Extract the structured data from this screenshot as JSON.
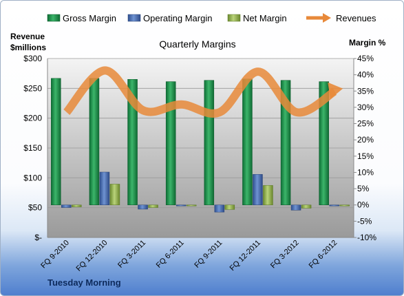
{
  "chart_data": {
    "type": "bar",
    "title": "Quarterly Margins",
    "company": "Tuesday Morning",
    "left_axis_label": [
      "Revenue",
      "$millions"
    ],
    "right_axis_label": "Margin %",
    "categories": [
      "FQ 9-2010",
      "FQ 12-2010",
      "FQ 3-2011",
      "FQ 6-2011",
      "FQ 9-2011",
      "FQ 12-2011",
      "FQ 3-2012",
      "FQ 6-2012"
    ],
    "left_ticks": [
      "$-",
      "$50",
      "$100",
      "$150",
      "$200",
      "$250",
      "$300"
    ],
    "right_ticks": [
      "-10%",
      "-5%",
      "0%",
      "5%",
      "10%",
      "15%",
      "20%",
      "25%",
      "30%",
      "35%",
      "40%",
      "45%"
    ],
    "ylim_left": [
      0,
      300
    ],
    "ylim_right": [
      -10,
      45
    ],
    "legend_position": "top",
    "grid": true,
    "series": [
      {
        "name": "Gross Margin",
        "type": "bar",
        "axis": "right",
        "color": "#1f8a4c",
        "values": [
          38.9,
          38.9,
          38.6,
          37.9,
          38.3,
          38.7,
          38.3,
          37.9
        ]
      },
      {
        "name": "Operating Margin",
        "type": "bar",
        "axis": "right",
        "color": "#4a6fb5",
        "values": [
          -0.8,
          10.1,
          -1.3,
          -0.3,
          -2.2,
          9.4,
          -1.6,
          -0.2
        ]
      },
      {
        "name": "Net Margin",
        "type": "bar",
        "axis": "right",
        "color": "#9bbb59",
        "values": [
          -0.6,
          6.4,
          -0.8,
          -0.2,
          -1.4,
          6.0,
          -1.0,
          -0.2
        ]
      },
      {
        "name": "Revenues",
        "type": "line",
        "axis": "left",
        "color": "#e8893a",
        "values": [
          210,
          280,
          213,
          223,
          210,
          278,
          210,
          245
        ]
      }
    ]
  }
}
